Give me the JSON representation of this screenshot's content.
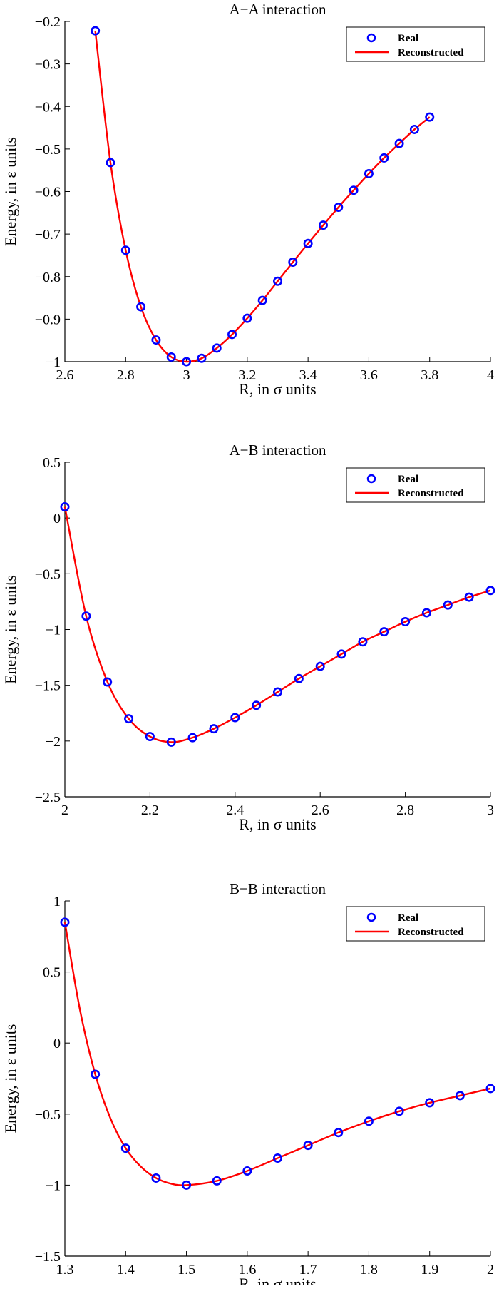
{
  "colors": {
    "real": "#0000ff",
    "reconstructed": "#ff0000",
    "axis": "#000000",
    "background": "#ffffff"
  },
  "chart_data": [
    {
      "type": "line",
      "title": "A−A interaction",
      "xlabel": "R, in σ units",
      "ylabel": "Energy, in ε units",
      "xlim": [
        2.6,
        4.0
      ],
      "ylim": [
        -1.0,
        -0.2
      ],
      "xticks": [
        "2.6",
        "2.8",
        "3",
        "3.2",
        "3.4",
        "3.6",
        "3.8",
        "4"
      ],
      "yticks": [
        "−1",
        "−0.9",
        "−0.8",
        "−0.7",
        "−0.6",
        "−0.5",
        "−0.4",
        "−0.3",
        "−0.2"
      ],
      "legend": {
        "position": "top-right",
        "entries": [
          "Real",
          "Reconstructed"
        ]
      },
      "series": [
        {
          "name": "Real",
          "style": "markers",
          "x": [
            2.7,
            2.75,
            2.8,
            2.85,
            2.9,
            2.95,
            3.0,
            3.05,
            3.1,
            3.15,
            3.2,
            3.25,
            3.3,
            3.35,
            3.4,
            3.45,
            3.5,
            3.55,
            3.6,
            3.65,
            3.7,
            3.75,
            3.8
          ],
          "y": [
            -0.222,
            -0.532,
            -0.738,
            -0.871,
            -0.949,
            -0.989,
            -1.0,
            -0.992,
            -0.968,
            -0.936,
            -0.898,
            -0.856,
            -0.811,
            -0.766,
            -0.722,
            -0.679,
            -0.637,
            -0.597,
            -0.558,
            -0.521,
            -0.487,
            -0.454,
            -0.425
          ]
        },
        {
          "name": "Reconstructed",
          "style": "line",
          "x": [
            2.7,
            2.75,
            2.8,
            2.85,
            2.9,
            2.95,
            3.0,
            3.05,
            3.1,
            3.15,
            3.2,
            3.25,
            3.3,
            3.35,
            3.4,
            3.45,
            3.5,
            3.55,
            3.6,
            3.65,
            3.7,
            3.75,
            3.8
          ],
          "y": [
            -0.222,
            -0.532,
            -0.738,
            -0.871,
            -0.949,
            -0.989,
            -1.0,
            -0.992,
            -0.968,
            -0.936,
            -0.898,
            -0.856,
            -0.811,
            -0.766,
            -0.722,
            -0.679,
            -0.637,
            -0.597,
            -0.558,
            -0.521,
            -0.487,
            -0.454,
            -0.425
          ]
        }
      ]
    },
    {
      "type": "line",
      "title": "A−B interaction",
      "xlabel": "R, in σ units",
      "ylabel": "Energy, in ε units",
      "xlim": [
        2.0,
        3.0
      ],
      "ylim": [
        -2.5,
        0.5
      ],
      "xticks": [
        "2",
        "2.2",
        "2.4",
        "2.6",
        "2.8",
        "3"
      ],
      "yticks": [
        "−2.5",
        "−2",
        "−1.5",
        "−1",
        "−0.5",
        "0",
        "0.5"
      ],
      "legend": {
        "position": "top-right",
        "entries": [
          "Real",
          "Reconstructed"
        ]
      },
      "series": [
        {
          "name": "Real",
          "style": "markers",
          "x": [
            2.0,
            2.05,
            2.1,
            2.15,
            2.2,
            2.25,
            2.3,
            2.35,
            2.4,
            2.45,
            2.5,
            2.55,
            2.6,
            2.65,
            2.7,
            2.75,
            2.8,
            2.85,
            2.9,
            2.95,
            3.0
          ],
          "y": [
            0.1,
            -0.88,
            -1.47,
            -1.8,
            -1.96,
            -2.01,
            -1.97,
            -1.89,
            -1.79,
            -1.68,
            -1.56,
            -1.44,
            -1.33,
            -1.22,
            -1.11,
            -1.02,
            -0.93,
            -0.85,
            -0.78,
            -0.71,
            -0.65
          ]
        },
        {
          "name": "Reconstructed",
          "style": "line",
          "x": [
            2.0,
            2.05,
            2.1,
            2.15,
            2.2,
            2.25,
            2.3,
            2.35,
            2.4,
            2.45,
            2.5,
            2.55,
            2.6,
            2.65,
            2.7,
            2.75,
            2.8,
            2.85,
            2.9,
            2.95,
            3.0
          ],
          "y": [
            0.1,
            -0.88,
            -1.47,
            -1.8,
            -1.96,
            -2.01,
            -1.97,
            -1.89,
            -1.79,
            -1.68,
            -1.56,
            -1.44,
            -1.33,
            -1.22,
            -1.11,
            -1.02,
            -0.93,
            -0.85,
            -0.78,
            -0.71,
            -0.65
          ]
        }
      ]
    },
    {
      "type": "line",
      "title": "B−B interaction",
      "xlabel": "R, in σ units",
      "ylabel": "Energy, in ε units",
      "xlim": [
        1.3,
        2.0
      ],
      "ylim": [
        -1.5,
        1.0
      ],
      "xticks": [
        "1.3",
        "1.4",
        "1.5",
        "1.6",
        "1.7",
        "1.8",
        "1.9",
        "2"
      ],
      "yticks": [
        "−1.5",
        "−1",
        "−0.5",
        "0",
        "0.5",
        "1"
      ],
      "legend": {
        "position": "top-right",
        "entries": [
          "Real",
          "Reconstructed"
        ]
      },
      "series": [
        {
          "name": "Real",
          "style": "markers",
          "x": [
            1.3,
            1.35,
            1.4,
            1.45,
            1.5,
            1.55,
            1.6,
            1.65,
            1.7,
            1.75,
            1.8,
            1.85,
            1.9,
            1.95,
            2.0
          ],
          "y": [
            0.85,
            -0.22,
            -0.74,
            -0.95,
            -1.0,
            -0.97,
            -0.9,
            -0.81,
            -0.72,
            -0.63,
            -0.55,
            -0.48,
            -0.42,
            -0.37,
            -0.32
          ]
        },
        {
          "name": "Reconstructed",
          "style": "line",
          "x": [
            1.3,
            1.325,
            1.35,
            1.375,
            1.4,
            1.425,
            1.45,
            1.475,
            1.5,
            1.55,
            1.6,
            1.65,
            1.7,
            1.75,
            1.8,
            1.85,
            1.9,
            1.95,
            2.0
          ],
          "y": [
            0.85,
            0.23,
            -0.22,
            -0.53,
            -0.74,
            -0.87,
            -0.95,
            -0.99,
            -1.0,
            -0.97,
            -0.9,
            -0.81,
            -0.72,
            -0.63,
            -0.55,
            -0.48,
            -0.42,
            -0.37,
            -0.32
          ]
        }
      ]
    }
  ]
}
